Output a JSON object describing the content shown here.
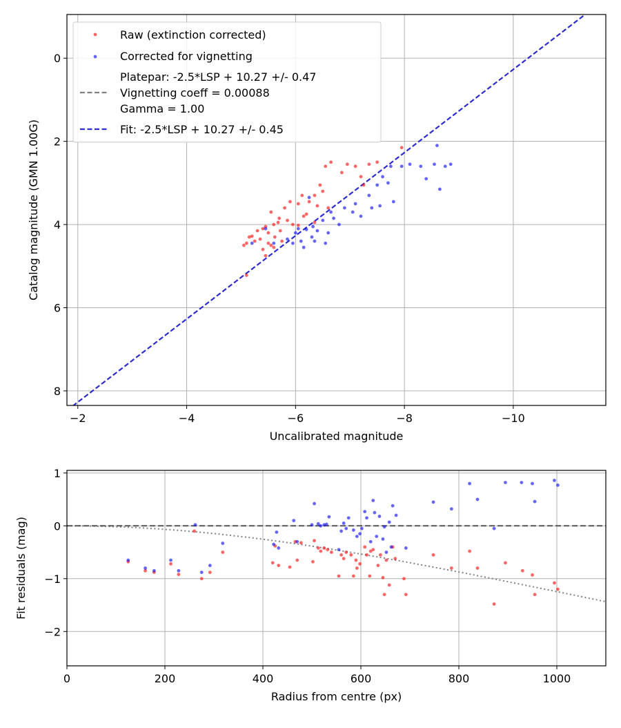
{
  "chart_data": [
    {
      "type": "scatter",
      "xlabel": "Uncalibrated magnitude",
      "ylabel": "Catalog magnitude (GMN 1.00G)",
      "xlim": [
        -1.8,
        -11.7
      ],
      "ylim": [
        8.35,
        -1.05
      ],
      "x_inverted": true,
      "y_inverted": true,
      "grid": true,
      "legend_position": "top-left",
      "xticks": [
        -2,
        -4,
        -6,
        -8,
        -10
      ],
      "xtick_labels": [
        "−2",
        "−4",
        "−6",
        "−8",
        "−10"
      ],
      "yticks": [
        0,
        2,
        4,
        6,
        8
      ],
      "ytick_labels": [
        "0",
        "2",
        "4",
        "6",
        "8"
      ],
      "legend": [
        {
          "label": "Raw (extinction corrected)",
          "marker": "dot",
          "color": "#ff0000"
        },
        {
          "label": "Corrected for vignetting",
          "marker": "dot",
          "color": "#0000ff"
        },
        {
          "label": "Platepar: -2.5*LSP + 10.27 +/- 0.47",
          "extra": [
            "Vignetting coeff = 0.00088",
            "Gamma = 1.00"
          ],
          "marker": "dash",
          "color": "#808080"
        },
        {
          "label": "Fit: -2.5*LSP + 10.27 +/- 0.45",
          "marker": "dash",
          "color": "#2b2bd0"
        }
      ],
      "fit_line": {
        "slope": 1.0,
        "intercept": 10.27,
        "color": "#2b2bd0"
      },
      "series": [
        {
          "name": "Raw (extinction corrected)",
          "color": "#ff0000",
          "points": [
            [
              -5.05,
              4.5
            ],
            [
              -5.1,
              4.45
            ],
            [
              -5.15,
              4.3
            ],
            [
              -5.2,
              4.28
            ],
            [
              -5.1,
              5.22
            ],
            [
              -5.25,
              4.4
            ],
            [
              -5.3,
              4.15
            ],
            [
              -5.35,
              4.35
            ],
            [
              -5.4,
              4.6
            ],
            [
              -5.4,
              4.1
            ],
            [
              -5.45,
              4.05
            ],
            [
              -5.45,
              4.75
            ],
            [
              -5.5,
              4.45
            ],
            [
              -5.5,
              4.2
            ],
            [
              -5.55,
              3.7
            ],
            [
              -5.55,
              4.5
            ],
            [
              -5.6,
              4.0
            ],
            [
              -5.6,
              4.55
            ],
            [
              -5.62,
              4.3
            ],
            [
              -5.68,
              3.95
            ],
            [
              -5.7,
              3.85
            ],
            [
              -5.72,
              4.15
            ],
            [
              -5.75,
              4.4
            ],
            [
              -5.8,
              3.6
            ],
            [
              -5.85,
              3.9
            ],
            [
              -5.9,
              3.45
            ],
            [
              -5.95,
              4.0
            ],
            [
              -6.05,
              4.02
            ],
            [
              -6.05,
              3.5
            ],
            [
              -6.12,
              3.3
            ],
            [
              -6.15,
              3.8
            ],
            [
              -6.2,
              3.75
            ],
            [
              -6.25,
              3.45
            ],
            [
              -6.35,
              3.95
            ],
            [
              -6.35,
              3.3
            ],
            [
              -6.4,
              3.55
            ],
            [
              -6.45,
              3.05
            ],
            [
              -6.5,
              3.2
            ],
            [
              -6.55,
              2.6
            ],
            [
              -6.6,
              3.6
            ],
            [
              -6.65,
              2.5
            ],
            [
              -6.85,
              2.75
            ],
            [
              -6.95,
              2.55
            ],
            [
              -7.1,
              2.6
            ],
            [
              -7.2,
              2.85
            ],
            [
              -7.25,
              3.05
            ],
            [
              -7.35,
              2.55
            ],
            [
              -7.5,
              2.5
            ],
            [
              -7.95,
              2.15
            ]
          ]
        },
        {
          "name": "Corrected for vignetting",
          "color": "#0000ff",
          "points": [
            [
              -5.2,
              4.45
            ],
            [
              -5.45,
              4.1
            ],
            [
              -5.6,
              4.45
            ],
            [
              -5.85,
              4.35
            ],
            [
              -5.95,
              4.45
            ],
            [
              -6.0,
              4.2
            ],
            [
              -6.05,
              4.1
            ],
            [
              -6.1,
              4.4
            ],
            [
              -6.15,
              4.55
            ],
            [
              -6.2,
              4.12
            ],
            [
              -6.25,
              3.35
            ],
            [
              -6.3,
              4.3
            ],
            [
              -6.32,
              4.05
            ],
            [
              -6.35,
              4.4
            ],
            [
              -6.4,
              4.15
            ],
            [
              -6.5,
              3.9
            ],
            [
              -6.55,
              4.45
            ],
            [
              -6.6,
              4.2
            ],
            [
              -6.65,
              3.7
            ],
            [
              -6.7,
              3.85
            ],
            [
              -6.8,
              4.0
            ],
            [
              -6.9,
              3.6
            ],
            [
              -7.05,
              3.7
            ],
            [
              -7.1,
              3.5
            ],
            [
              -7.2,
              3.8
            ],
            [
              -7.35,
              3.3
            ],
            [
              -7.4,
              3.6
            ],
            [
              -7.5,
              3.05
            ],
            [
              -7.55,
              3.55
            ],
            [
              -7.6,
              2.85
            ],
            [
              -7.7,
              3.0
            ],
            [
              -7.75,
              2.6
            ],
            [
              -7.8,
              3.45
            ],
            [
              -7.95,
              2.6
            ],
            [
              -8.1,
              2.55
            ],
            [
              -8.3,
              2.6
            ],
            [
              -8.4,
              2.9
            ],
            [
              -8.55,
              2.55
            ],
            [
              -8.6,
              2.1
            ],
            [
              -8.65,
              3.15
            ],
            [
              -8.75,
              2.6
            ],
            [
              -8.85,
              2.55
            ]
          ]
        }
      ]
    },
    {
      "type": "scatter",
      "xlabel": "Radius from centre (px)",
      "ylabel": "Fit residuals (mag)",
      "xlim": [
        0,
        1100
      ],
      "ylim": [
        -2.65,
        1.05
      ],
      "grid": true,
      "xticks": [
        0,
        200,
        400,
        600,
        800,
        1000
      ],
      "xtick_labels": [
        "0",
        "200",
        "400",
        "600",
        "800",
        "1000"
      ],
      "yticks": [
        1,
        0,
        -1,
        -2
      ],
      "ytick_labels": [
        "1",
        "0",
        "−1",
        "−2"
      ],
      "zero_line": {
        "y": 0,
        "color": "#555555"
      },
      "vignetting_curve": {
        "coeff": 0.00088,
        "color": "#808080"
      },
      "series": [
        {
          "name": "Raw (extinction corrected)",
          "color": "#ff0000",
          "points": [
            [
              125,
              -0.68
            ],
            [
              160,
              -0.85
            ],
            [
              178,
              -0.88
            ],
            [
              212,
              -0.72
            ],
            [
              228,
              -0.92
            ],
            [
              260,
              -0.1
            ],
            [
              275,
              -1.0
            ],
            [
              292,
              -0.88
            ],
            [
              318,
              -0.5
            ],
            [
              420,
              -0.7
            ],
            [
              425,
              -0.38
            ],
            [
              432,
              -0.75
            ],
            [
              455,
              -0.78
            ],
            [
              466,
              -0.3
            ],
            [
              470,
              -0.65
            ],
            [
              478,
              -0.32
            ],
            [
              502,
              -0.68
            ],
            [
              505,
              -0.28
            ],
            [
              513,
              -0.42
            ],
            [
              518,
              -0.48
            ],
            [
              525,
              -0.42
            ],
            [
              532,
              -0.45
            ],
            [
              540,
              -0.5
            ],
            [
              555,
              -0.95
            ],
            [
              560,
              -0.55
            ],
            [
              565,
              -0.62
            ],
            [
              570,
              -0.5
            ],
            [
              580,
              -0.55
            ],
            [
              585,
              -0.95
            ],
            [
              590,
              -0.65
            ],
            [
              592,
              -0.8
            ],
            [
              598,
              -0.72
            ],
            [
              608,
              -0.4
            ],
            [
              612,
              -0.55
            ],
            [
              618,
              -0.95
            ],
            [
              620,
              -0.48
            ],
            [
              625,
              -0.45
            ],
            [
              635,
              -0.75
            ],
            [
              640,
              -0.55
            ],
            [
              645,
              -0.98
            ],
            [
              648,
              -1.3
            ],
            [
              652,
              -0.65
            ],
            [
              658,
              -1.12
            ],
            [
              665,
              -0.4
            ],
            [
              670,
              -0.62
            ],
            [
              688,
              -1.0
            ],
            [
              692,
              -1.3
            ],
            [
              748,
              -0.55
            ],
            [
              785,
              -0.8
            ],
            [
              822,
              -0.48
            ],
            [
              838,
              -0.8
            ],
            [
              872,
              -1.48
            ],
            [
              895,
              -0.7
            ],
            [
              930,
              -0.85
            ],
            [
              950,
              -0.93
            ],
            [
              955,
              -1.3
            ],
            [
              995,
              -1.08
            ],
            [
              1002,
              -1.2
            ]
          ]
        },
        {
          "name": "Corrected for vignetting",
          "color": "#0000ff",
          "points": [
            [
              125,
              -0.65
            ],
            [
              160,
              -0.8
            ],
            [
              178,
              -0.85
            ],
            [
              212,
              -0.65
            ],
            [
              228,
              -0.85
            ],
            [
              262,
              0.02
            ],
            [
              275,
              -0.88
            ],
            [
              292,
              -0.75
            ],
            [
              318,
              -0.33
            ],
            [
              422,
              -0.35
            ],
            [
              428,
              -0.12
            ],
            [
              432,
              -0.42
            ],
            [
              463,
              0.1
            ],
            [
              470,
              -0.3
            ],
            [
              500,
              0.02
            ],
            [
              505,
              0.42
            ],
            [
              513,
              0.04
            ],
            [
              518,
              0.0
            ],
            [
              525,
              0.02
            ],
            [
              530,
              0.03
            ],
            [
              535,
              0.17
            ],
            [
              555,
              -0.45
            ],
            [
              560,
              -0.1
            ],
            [
              565,
              0.05
            ],
            [
              570,
              -0.05
            ],
            [
              575,
              0.15
            ],
            [
              585,
              -0.08
            ],
            [
              592,
              -0.2
            ],
            [
              598,
              -0.15
            ],
            [
              602,
              -0.05
            ],
            [
              608,
              0.27
            ],
            [
              612,
              0.15
            ],
            [
              620,
              -0.3
            ],
            [
              625,
              0.48
            ],
            [
              628,
              0.25
            ],
            [
              632,
              -0.2
            ],
            [
              638,
              0.18
            ],
            [
              645,
              -0.25
            ],
            [
              648,
              -0.02
            ],
            [
              652,
              -0.5
            ],
            [
              658,
              0.07
            ],
            [
              662,
              -0.4
            ],
            [
              665,
              0.38
            ],
            [
              672,
              0.2
            ],
            [
              692,
              -0.42
            ],
            [
              748,
              0.45
            ],
            [
              785,
              0.32
            ],
            [
              822,
              0.8
            ],
            [
              838,
              0.5
            ],
            [
              872,
              -0.05
            ],
            [
              895,
              0.82
            ],
            [
              928,
              0.82
            ],
            [
              950,
              0.8
            ],
            [
              955,
              0.46
            ],
            [
              995,
              0.86
            ],
            [
              1002,
              0.77
            ]
          ]
        }
      ]
    }
  ]
}
